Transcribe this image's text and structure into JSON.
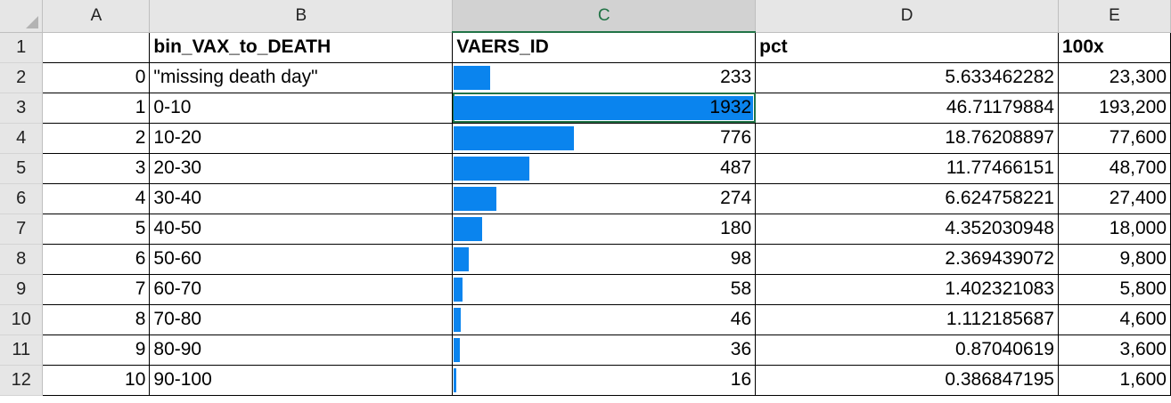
{
  "sheet": {
    "columns": [
      "A",
      "B",
      "C",
      "D",
      "E"
    ],
    "selected_column": "C",
    "header_row": {
      "row_number": "1",
      "A": "",
      "B": "bin_VAX_to_DEATH",
      "C": "VAERS_ID",
      "D": "pct",
      "E": "100x"
    },
    "rows": [
      {
        "row_number": "2",
        "A": "0",
        "B": "\"missing death day\"",
        "C": "233",
        "D": "5.633462282",
        "E": "23,300"
      },
      {
        "row_number": "3",
        "A": "1",
        "B": "0-10",
        "C": "1932",
        "D": "46.71179884",
        "E": "193,200"
      },
      {
        "row_number": "4",
        "A": "2",
        "B": "10-20",
        "C": "776",
        "D": "18.76208897",
        "E": "77,600"
      },
      {
        "row_number": "5",
        "A": "3",
        "B": "20-30",
        "C": "487",
        "D": "11.77466151",
        "E": "48,700"
      },
      {
        "row_number": "6",
        "A": "4",
        "B": "30-40",
        "C": "274",
        "D": "6.624758221",
        "E": "27,400"
      },
      {
        "row_number": "7",
        "A": "5",
        "B": "40-50",
        "C": "180",
        "D": "4.352030948",
        "E": "18,000"
      },
      {
        "row_number": "8",
        "A": "6",
        "B": "50-60",
        "C": "98",
        "D": "2.369439072",
        "E": "9,800"
      },
      {
        "row_number": "9",
        "A": "7",
        "B": "60-70",
        "C": "58",
        "D": "1.402321083",
        "E": "5,800"
      },
      {
        "row_number": "10",
        "A": "8",
        "B": "70-80",
        "C": "46",
        "D": "1.112185687",
        "E": "4,600"
      },
      {
        "row_number": "11",
        "A": "9",
        "B": "80-90",
        "C": "36",
        "D": "0.87040619",
        "E": "3,600"
      },
      {
        "row_number": "12",
        "A": "10",
        "B": "90-100",
        "C": "16",
        "D": "0.386847195",
        "E": "1,600"
      }
    ],
    "data_bar_color": "#0a84ee",
    "data_bar_max": 1932,
    "selected_cell": "C3"
  }
}
